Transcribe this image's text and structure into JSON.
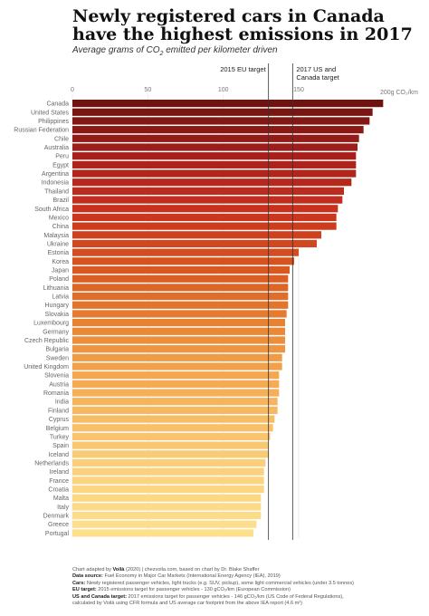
{
  "title": "Newly registered cars in Canada have the highest emissions in 2017",
  "subtitle_pre": "Average grams of CO",
  "subtitle_sub": "2",
  "subtitle_post": " emitted per kilometer driven",
  "chart_data": {
    "type": "bar",
    "orientation": "horizontal",
    "title": "Newly registered cars in Canada have the highest emissions in 2017",
    "xlim": [
      0,
      210
    ],
    "xticks": [
      0,
      50,
      100,
      150
    ],
    "xtick_labels": [
      "0",
      "50",
      "100",
      "150"
    ],
    "unit_label": "200g CO₂/km",
    "reference_lines": [
      {
        "value": 130,
        "label": "2015 EU target"
      },
      {
        "value": 146,
        "label_lines": [
          "2017 US and",
          "Canada target"
        ]
      }
    ],
    "categories": [
      "Canada",
      "United States",
      "Philippines",
      "Russian Federation",
      "Chile",
      "Australia",
      "Peru",
      "Egypt",
      "Argentina",
      "Indonesia",
      "Thailand",
      "Brazil",
      "South Africa",
      "Mexico",
      "China",
      "Malaysia",
      "Ukraine",
      "Estonia",
      "Korea",
      "Japan",
      "Poland",
      "Lithuania",
      "Latvia",
      "Hungary",
      "Slovakia",
      "Luxembourg",
      "Germany",
      "Czech Republic",
      "Bulgaria",
      "Sweden",
      "United Kingdom",
      "Slovenia",
      "Austria",
      "Romania",
      "India",
      "Finland",
      "Cyprus",
      "Belgium",
      "Turkey",
      "Spain",
      "Iceland",
      "Netherlands",
      "Ireland",
      "France",
      "Croatia",
      "Malta",
      "Italy",
      "Denmark",
      "Greece",
      "Portugal"
    ],
    "values": [
      206,
      199,
      197,
      193,
      190,
      189,
      188,
      188,
      188,
      185,
      180,
      179,
      176,
      175,
      175,
      165,
      162,
      150,
      147,
      144,
      143,
      143,
      143,
      143,
      142,
      141,
      141,
      141,
      141,
      139,
      139,
      137,
      137,
      137,
      136,
      136,
      134,
      133,
      131,
      130,
      130,
      128,
      127,
      127,
      127,
      125,
      125,
      125,
      122,
      120
    ]
  },
  "footer": {
    "line1_pre": "Chart adapted by ",
    "line1_brand": "Voilà",
    "line1_post": " (2020) | chezvoila.com, based on chart by Dr. Blake Shaffer",
    "line2_label": "Data source:",
    "line2_text": " Fuel Economy in Major Car Markets (International Energy Agency (IEA), 2019)",
    "line3_label": "Cars:",
    "line3_text": " Newly registered passenger vehicles, light trucks (e.g. SUV, pickup), some light commercial vehicles (under 3.5 tonnes)",
    "line4_label": "EU target:",
    "line4_text": " 2015 emissions target for passenger vehicles - 130 gCO₂/km (European Commission)",
    "line5_label": "US and Canada target:",
    "line5_text": " 2017 emissions target for passenger vehicles - 146 gCO₂/km (US Code of Federal Regulations),",
    "line6_text": "calculated by Voilà using CFR formula and US average car footprint from the above IEA report (4.6 m²)"
  }
}
